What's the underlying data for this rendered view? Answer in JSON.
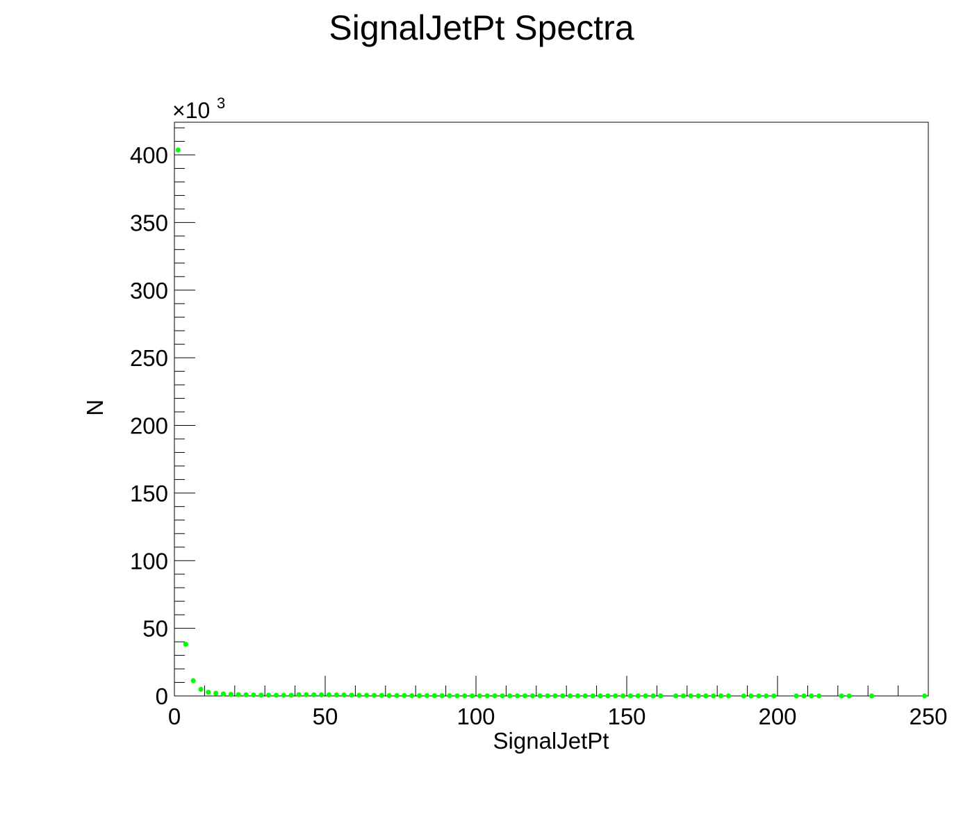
{
  "chart_data": {
    "type": "scatter",
    "title": "SignalJetPt Spectra",
    "xlabel": "SignalJetPt",
    "ylabel": "N",
    "y_multiplier_label": "×10",
    "y_multiplier_exponent": "3",
    "xlim": [
      0,
      250
    ],
    "ylim": [
      0,
      400
    ],
    "xticks": [
      0,
      50,
      100,
      150,
      200,
      250
    ],
    "xtick_labels": [
      "0",
      "50",
      "100",
      "150",
      "200",
      "250"
    ],
    "yticks": [
      0,
      50,
      100,
      150,
      200,
      250,
      300,
      350,
      400
    ],
    "ytick_labels": [
      "0",
      "50",
      "100",
      "150",
      "200",
      "250",
      "300",
      "350",
      "400"
    ],
    "grid": false,
    "legend": "none",
    "marker_color": "#00ff00",
    "series": [
      {
        "x": [
          1.25,
          3.75,
          6.25,
          8.75,
          11.25,
          13.75,
          16.25,
          18.75,
          21.25,
          23.75,
          26.25,
          28.75,
          31.25,
          33.75,
          36.25,
          38.75,
          41.25,
          43.75,
          46.25,
          48.75,
          51.25,
          53.75,
          56.25,
          58.75,
          61.25,
          63.75,
          66.25,
          68.75,
          71.25,
          73.75,
          76.25,
          78.75,
          81.25,
          83.75,
          86.25,
          88.75,
          91.25,
          93.75,
          96.25,
          98.75,
          101.25,
          103.75,
          106.25,
          108.75,
          111.25,
          113.75,
          116.25,
          118.75,
          121.25,
          123.75,
          126.25,
          128.75,
          131.25,
          133.75,
          136.25,
          138.75,
          141.25,
          143.75,
          146.25,
          148.75,
          151.25,
          153.75,
          156.25,
          158.75,
          161.25,
          166.25,
          168.75,
          171.25,
          173.75,
          176.25,
          178.75,
          181.25,
          183.75,
          188.75,
          191.25,
          193.75,
          196.25,
          198.75,
          206.25,
          208.75,
          211.25,
          213.75,
          221.25,
          223.75,
          231.25,
          248.75
        ],
        "y": [
          403.6,
          38.2,
          11.3,
          4.9,
          2.7,
          2.0,
          1.5,
          1.2,
          1.0,
          0.8,
          0.7,
          0.6,
          0.6,
          0.5,
          0.5,
          0.5,
          0.9,
          0.9,
          0.8,
          0.8,
          0.8,
          0.7,
          0.7,
          0.6,
          0.5,
          0.5,
          0.4,
          0.4,
          0.3,
          0.3,
          0.3,
          0.2,
          0.2,
          0.2,
          0.2,
          0.2,
          0.2,
          0.1,
          0.1,
          0.1,
          0.1,
          0.1,
          0.1,
          0.1,
          0.1,
          0.1,
          0.1,
          0.1,
          0.1,
          0.1,
          0.1,
          0.1,
          0.05,
          0.05,
          0.05,
          0.05,
          0.05,
          0.05,
          0.05,
          0.05,
          0.05,
          0.05,
          0.05,
          0.05,
          0.05,
          0.03,
          0.03,
          0.03,
          0.03,
          0.03,
          0.03,
          0.03,
          0.03,
          0.02,
          0.02,
          0.02,
          0.02,
          0.02,
          0.02,
          0.02,
          0.02,
          0.02,
          0.01,
          0.01,
          0.01,
          0.01
        ]
      }
    ]
  }
}
